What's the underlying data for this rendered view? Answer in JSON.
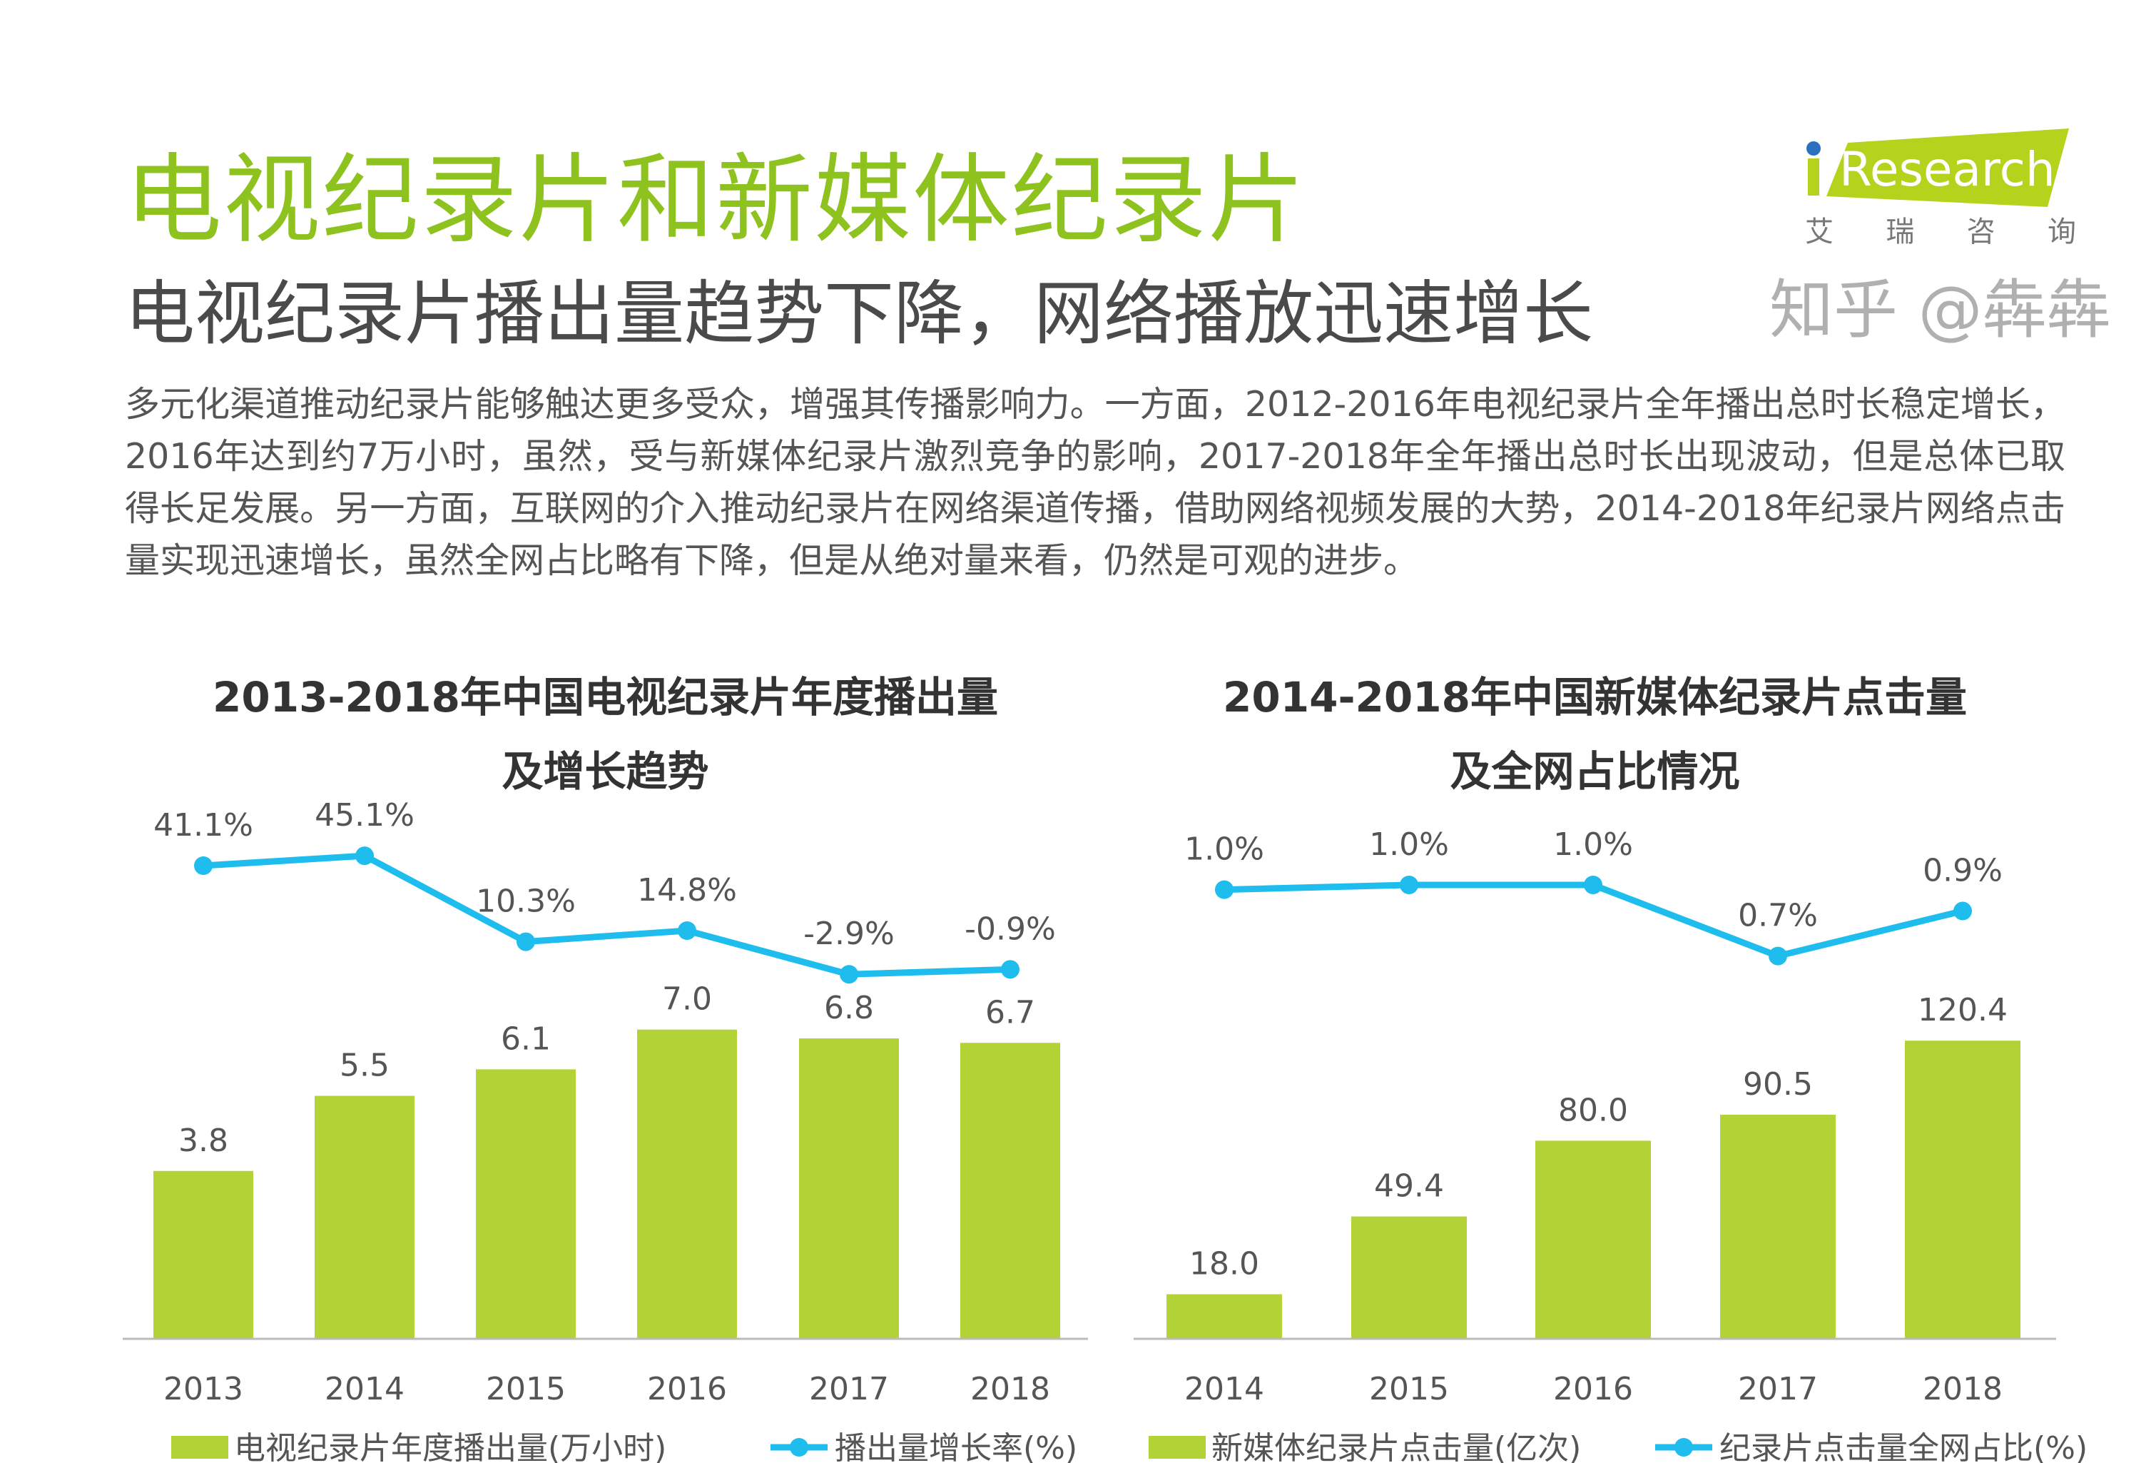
{
  "header": {
    "title": "电视纪录片和新媒体纪录片",
    "subtitle": "电视纪录片播出量趋势下降，网络播放迅速增长",
    "paragraph": "多元化渠道推动纪录片能够触达更多受众，增强其传播影响力。一方面，2012-2016年电视纪录片全年播出总时长稳定增长，2016年达到约7万小时，虽然，受与新媒体纪录片激烈竞争的影响，2017-2018年全年播出总时长出现波动，但是总体已取得长足发展。另一方面，互联网的介入推动纪录片在网络渠道传播，借助网络视频发展的大势，2014-2018年纪录片网络点击量实现迅速增长，虽然全网占比略有下降，但是从绝对量来看，仍然是可观的进步。"
  },
  "logo": {
    "text": "iResearch",
    "cn_chars": [
      "艾",
      "瑞",
      "咨",
      "询"
    ]
  },
  "watermark": "知乎 @犇犇",
  "colors": {
    "title_green": "#8dc21f",
    "bar": "#b2d235",
    "line": "#1fbdee",
    "text": "#555555"
  },
  "chart_data": [
    {
      "type": "bar+line",
      "title": [
        "2013-2018年中国电视纪录片年度播出量",
        "及增长趋势"
      ],
      "categories": [
        "2013",
        "2014",
        "2015",
        "2016",
        "2017",
        "2018"
      ],
      "series": [
        {
          "name": "电视纪录片年度播出量(万小时)",
          "type": "bar",
          "values": [
            3.8,
            5.5,
            6.1,
            7.0,
            6.8,
            6.7
          ],
          "labels": [
            "3.8",
            "5.5",
            "6.1",
            "7.0",
            "6.8",
            "6.7"
          ]
        },
        {
          "name": "播出量增长率(%)",
          "type": "line",
          "values": [
            41.1,
            45.1,
            10.3,
            14.8,
            -2.9,
            -0.9
          ],
          "labels": [
            "41.1%",
            "45.1%",
            "10.3%",
            "14.8%",
            "-2.9%",
            "-0.9%"
          ]
        }
      ],
      "legend": "bottom"
    },
    {
      "type": "bar+line",
      "title": [
        "2014-2018年中国新媒体纪录片点击量",
        "及全网占比情况"
      ],
      "categories": [
        "2014",
        "2015",
        "2016",
        "2017",
        "2018"
      ],
      "series": [
        {
          "name": "新媒体纪录片点击量(亿次)",
          "type": "bar",
          "values": [
            18.0,
            49.4,
            80.0,
            90.5,
            120.4
          ],
          "labels": [
            "18.0",
            "49.4",
            "80.0",
            "90.5",
            "120.4"
          ]
        },
        {
          "name": "纪录片点击量全网占比(%)",
          "type": "line",
          "values": [
            0.98,
            1.0,
            1.0,
            0.7,
            0.89
          ],
          "labels": [
            "1.0%",
            "1.0%",
            "1.0%",
            "0.7%",
            "0.9%"
          ]
        }
      ],
      "legend": "bottom"
    }
  ]
}
